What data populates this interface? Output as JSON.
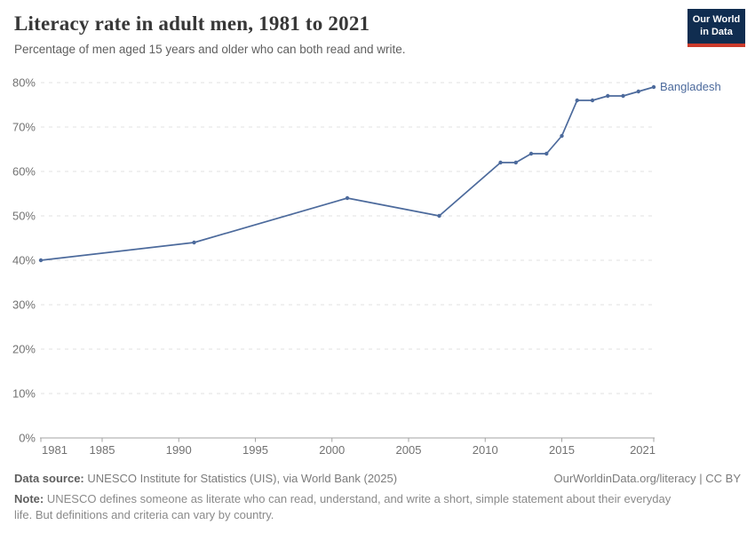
{
  "header": {
    "title": "Literacy rate in adult men, 1981 to 2021",
    "subtitle": "Percentage of men aged 15 years and older who can both read and write.",
    "logo": {
      "line1": "Our World",
      "line2": "in Data"
    }
  },
  "chart_data": {
    "type": "line",
    "title": "Literacy rate in adult men, 1981 to 2021",
    "xlabel": "",
    "ylabel": "",
    "x": [
      1981,
      1991,
      2001,
      2007,
      2011,
      2012,
      2013,
      2014,
      2015,
      2016,
      2017,
      2018,
      2019,
      2020,
      2021
    ],
    "series": [
      {
        "name": "Bangladesh",
        "color": "#4c6a9c",
        "values": [
          40,
          44,
          54,
          50,
          62,
          62,
          64,
          64,
          68,
          76,
          76,
          77,
          77,
          78,
          79
        ]
      }
    ],
    "xlim": [
      1981,
      2021
    ],
    "ylim": [
      0,
      80
    ],
    "x_ticks": [
      1981,
      1985,
      1990,
      1995,
      2000,
      2005,
      2010,
      2015,
      2021
    ],
    "y_ticks": [
      0,
      10,
      20,
      30,
      40,
      50,
      60,
      70,
      80
    ],
    "y_tick_suffix": "%",
    "grid": true,
    "legend_position": "end-of-line"
  },
  "footer": {
    "datasource_label": "Data source:",
    "datasource_text": "UNESCO Institute for Statistics (UIS), via World Bank (2025)",
    "license": "OurWorldinData.org/literacy | CC BY",
    "note_label": "Note:",
    "note_text": "UNESCO defines someone as literate who can read, understand, and write a short, simple statement about their everyday life. But definitions and criteria can vary by country."
  },
  "colors": {
    "line": "#4c6a9c",
    "grid": "#e2e2e2",
    "axis": "#a3a3a3",
    "logo_bg": "#102d50",
    "logo_accent": "#cc3b2c"
  }
}
